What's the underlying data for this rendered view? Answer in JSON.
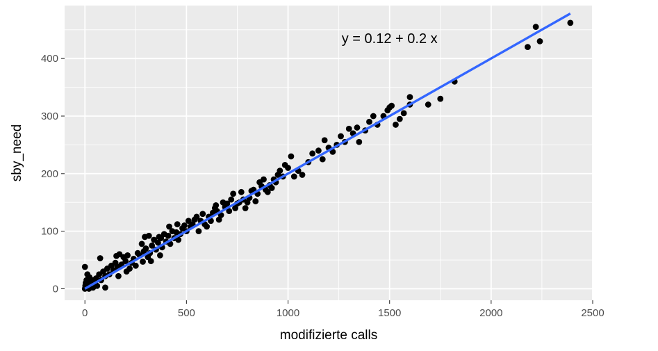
{
  "chart_data": {
    "type": "scatter",
    "xlabel": "modifizierte calls",
    "ylabel": "sby_need",
    "annotation": "y = 0.12 + 0.2 x",
    "xlim": [
      -100,
      2500
    ],
    "ylim": [
      -20,
      492
    ],
    "xticks": [
      0,
      500,
      1000,
      1500,
      2000,
      2500
    ],
    "xtick_labels": [
      "0",
      "500",
      "1000",
      "1500",
      "2000",
      "2500"
    ],
    "yticks": [
      0,
      100,
      200,
      300,
      400
    ],
    "ytick_labels": [
      "0",
      "100",
      "200",
      "300",
      "400"
    ],
    "grid": true,
    "panel_background": "#ebebeb",
    "grid_color": "#ffffff",
    "point_color": "#000000",
    "fit_line": {
      "intercept": 0.12,
      "slope": 0.2,
      "x_range": [
        0,
        2390
      ],
      "color": "#3366ff"
    },
    "points": [
      [
        0,
        0
      ],
      [
        2,
        5
      ],
      [
        4,
        10
      ],
      [
        6,
        2
      ],
      [
        8,
        15
      ],
      [
        10,
        8
      ],
      [
        0,
        38
      ],
      [
        12,
        25
      ],
      [
        15,
        3
      ],
      [
        18,
        12
      ],
      [
        20,
        0
      ],
      [
        22,
        20
      ],
      [
        25,
        6
      ],
      [
        30,
        10
      ],
      [
        35,
        15
      ],
      [
        40,
        2
      ],
      [
        45,
        8
      ],
      [
        50,
        12
      ],
      [
        55,
        18
      ],
      [
        60,
        5
      ],
      [
        70,
        25
      ],
      [
        75,
        53
      ],
      [
        80,
        15
      ],
      [
        90,
        30
      ],
      [
        100,
        22
      ],
      [
        100,
        2
      ],
      [
        110,
        35
      ],
      [
        120,
        25
      ],
      [
        130,
        40
      ],
      [
        140,
        32
      ],
      [
        150,
        45
      ],
      [
        155,
        57
      ],
      [
        160,
        38
      ],
      [
        165,
        22
      ],
      [
        170,
        60
      ],
      [
        180,
        42
      ],
      [
        190,
        55
      ],
      [
        200,
        48
      ],
      [
        205,
        30
      ],
      [
        210,
        58
      ],
      [
        220,
        35
      ],
      [
        230,
        45
      ],
      [
        240,
        52
      ],
      [
        250,
        40
      ],
      [
        260,
        62
      ],
      [
        270,
        58
      ],
      [
        280,
        78
      ],
      [
        285,
        47
      ],
      [
        290,
        65
      ],
      [
        295,
        90
      ],
      [
        300,
        70
      ],
      [
        310,
        55
      ],
      [
        315,
        92
      ],
      [
        320,
        62
      ],
      [
        325,
        48
      ],
      [
        330,
        75
      ],
      [
        340,
        85
      ],
      [
        350,
        68
      ],
      [
        360,
        80
      ],
      [
        365,
        90
      ],
      [
        370,
        58
      ],
      [
        375,
        88
      ],
      [
        380,
        72
      ],
      [
        390,
        95
      ],
      [
        400,
        82
      ],
      [
        410,
        92
      ],
      [
        415,
        108
      ],
      [
        420,
        78
      ],
      [
        430,
        100
      ],
      [
        440,
        88
      ],
      [
        450,
        98
      ],
      [
        455,
        112
      ],
      [
        460,
        85
      ],
      [
        470,
        95
      ],
      [
        480,
        105
      ],
      [
        490,
        110
      ],
      [
        500,
        100
      ],
      [
        510,
        118
      ],
      [
        520,
        108
      ],
      [
        530,
        112
      ],
      [
        540,
        120
      ],
      [
        550,
        125
      ],
      [
        560,
        100
      ],
      [
        570,
        118
      ],
      [
        580,
        130
      ],
      [
        590,
        112
      ],
      [
        600,
        108
      ],
      [
        610,
        125
      ],
      [
        620,
        118
      ],
      [
        630,
        132
      ],
      [
        640,
        140
      ],
      [
        645,
        145
      ],
      [
        650,
        135
      ],
      [
        660,
        120
      ],
      [
        670,
        128
      ],
      [
        680,
        150
      ],
      [
        690,
        142
      ],
      [
        700,
        148
      ],
      [
        710,
        135
      ],
      [
        720,
        155
      ],
      [
        730,
        165
      ],
      [
        740,
        140
      ],
      [
        750,
        148
      ],
      [
        760,
        150
      ],
      [
        770,
        168
      ],
      [
        780,
        155
      ],
      [
        790,
        140
      ],
      [
        800,
        150
      ],
      [
        810,
        158
      ],
      [
        820,
        170
      ],
      [
        830,
        172
      ],
      [
        840,
        152
      ],
      [
        850,
        165
      ],
      [
        860,
        185
      ],
      [
        870,
        178
      ],
      [
        880,
        190
      ],
      [
        890,
        172
      ],
      [
        900,
        168
      ],
      [
        910,
        180
      ],
      [
        920,
        175
      ],
      [
        930,
        190
      ],
      [
        940,
        185
      ],
      [
        950,
        198
      ],
      [
        960,
        205
      ],
      [
        975,
        195
      ],
      [
        985,
        215
      ],
      [
        1000,
        210
      ],
      [
        1015,
        230
      ],
      [
        1030,
        195
      ],
      [
        1050,
        205
      ],
      [
        1070,
        198
      ],
      [
        1100,
        220
      ],
      [
        1120,
        235
      ],
      [
        1150,
        240
      ],
      [
        1170,
        225
      ],
      [
        1180,
        258
      ],
      [
        1200,
        245
      ],
      [
        1220,
        238
      ],
      [
        1240,
        250
      ],
      [
        1260,
        265
      ],
      [
        1280,
        255
      ],
      [
        1300,
        278
      ],
      [
        1320,
        270
      ],
      [
        1340,
        280
      ],
      [
        1350,
        255
      ],
      [
        1380,
        275
      ],
      [
        1400,
        290
      ],
      [
        1420,
        300
      ],
      [
        1440,
        285
      ],
      [
        1470,
        300
      ],
      [
        1490,
        310
      ],
      [
        1500,
        315
      ],
      [
        1510,
        318
      ],
      [
        1530,
        285
      ],
      [
        1550,
        295
      ],
      [
        1570,
        305
      ],
      [
        1600,
        320
      ],
      [
        1600,
        333
      ],
      [
        1690,
        320
      ],
      [
        1750,
        330
      ],
      [
        1820,
        360
      ],
      [
        2180,
        420
      ],
      [
        2220,
        455
      ],
      [
        2240,
        430
      ],
      [
        2390,
        462
      ]
    ]
  }
}
